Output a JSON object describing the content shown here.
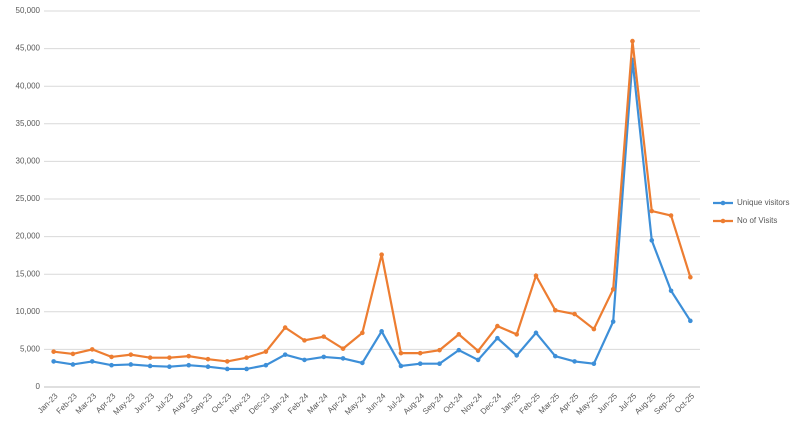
{
  "chart_data": {
    "type": "line",
    "categories": [
      "Jan-23",
      "Feb-23",
      "Mar-23",
      "Apr-23",
      "May-23",
      "Jun-23",
      "Jul-23",
      "Aug-23",
      "Sep-23",
      "Oct-23",
      "Nov-23",
      "Dec-23",
      "Jan-24",
      "Feb-24",
      "Mar-24",
      "Apr-24",
      "May-24",
      "Jun-24",
      "Jul-24",
      "Aug-24",
      "Sep-24",
      "Oct-24",
      "Nov-24",
      "Dec-24",
      "Jan-25",
      "Feb-25",
      "Mar-25",
      "Apr-25",
      "May-25",
      "Jun-25",
      "Jul-25",
      "Aug-25",
      "Sep-25",
      "Oct-25"
    ],
    "series": [
      {
        "name": "Unique visitors",
        "color": "#3d8fd8",
        "values": [
          3400,
          3000,
          3400,
          2900,
          3000,
          2800,
          2700,
          2900,
          2700,
          2400,
          2400,
          2900,
          4300,
          3600,
          4000,
          3800,
          3200,
          7400,
          2800,
          3100,
          3100,
          4900,
          3600,
          6500,
          4200,
          7200,
          4100,
          3400,
          3100,
          8700,
          43500,
          19500,
          12800,
          8800
        ]
      },
      {
        "name": "No of Visits",
        "color": "#ed7d31",
        "values": [
          4700,
          4400,
          5000,
          4000,
          4300,
          3900,
          3900,
          4100,
          3700,
          3400,
          3900,
          4700,
          7900,
          6200,
          6700,
          5100,
          7200,
          17600,
          4500,
          4500,
          4900,
          7000,
          4800,
          8100,
          7000,
          14800,
          10200,
          9700,
          7700,
          13000,
          46000,
          23400,
          22800,
          14600
        ]
      }
    ],
    "ylim": [
      0,
      50000
    ],
    "yticks": [
      0,
      {
        "value": 5000,
        "label": "5,000"
      },
      {
        "value": 10000,
        "label": "10,000"
      },
      {
        "value": 15000,
        "label": "15,000"
      },
      {
        "value": 20000,
        "label": "20,000"
      },
      {
        "value": 25000,
        "label": "25,000"
      },
      {
        "value": 30000,
        "label": "30,000"
      },
      {
        "value": 35000,
        "label": "35,000"
      },
      {
        "value": 40000,
        "label": "40,000"
      },
      {
        "value": 45000,
        "label": "45,000"
      },
      {
        "value": 50000,
        "label": "50,000"
      }
    ],
    "grid": true,
    "legend": "right"
  }
}
